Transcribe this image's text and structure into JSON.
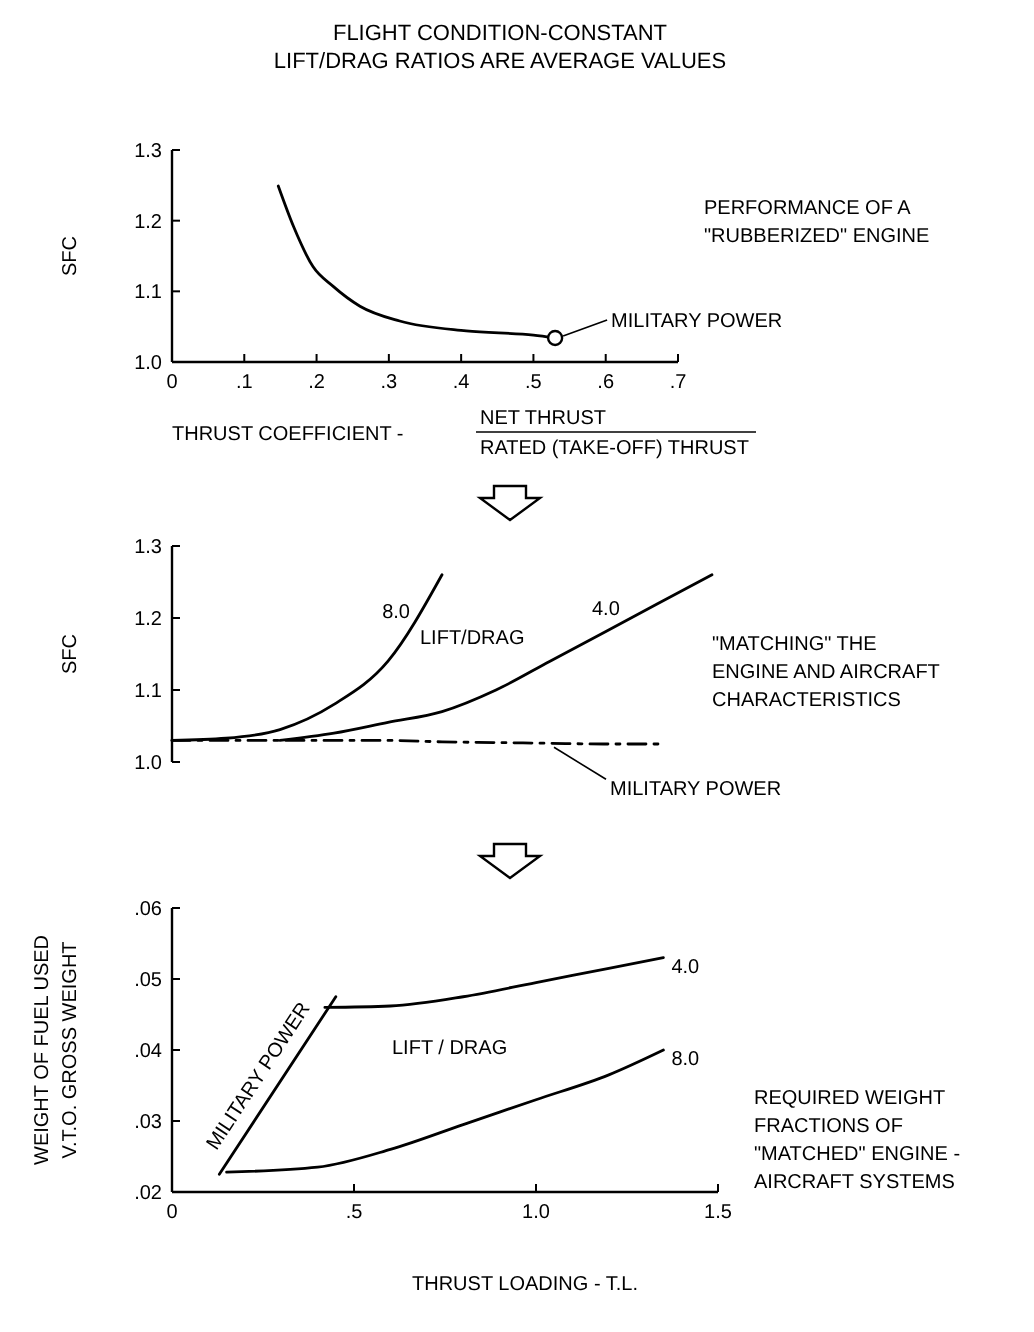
{
  "chart_data": [
    {
      "type": "line",
      "title": "FLIGHT CONDITION-CONSTANT\nLIFT/DRAG RATIOS ARE AVERAGE VALUES",
      "xlabel": "THRUST COEFFICIENT - NET THRUST\nRATED (TAKE-OFF) THRUST",
      "ylabel": "SFC",
      "xlim": [
        0,
        0.7
      ],
      "xticks": [
        {
          "value": 0,
          "label": "0"
        },
        {
          "value": 0.1,
          "label": ".1"
        },
        {
          "value": 0.2,
          "label": ".2"
        },
        {
          "value": 0.3,
          "label": ".3"
        },
        {
          "value": 0.4,
          "label": ".4"
        },
        {
          "value": 0.5,
          "label": ".5"
        },
        {
          "value": 0.6,
          "label": ".6"
        },
        {
          "value": 0.7,
          "label": ".7"
        }
      ],
      "ylim": [
        1.0,
        1.3
      ],
      "yticks": [
        {
          "value": 1,
          "label": "1.0"
        },
        1.1,
        1.2,
        1.3
      ],
      "annotations": [
        "PERFORMANCE OF A\n\"RUBBERIZED\" ENGINE",
        {
          "text": "MILITARY POWER",
          "x": 0.53,
          "y": 1.034
        }
      ],
      "series": [
        {
          "color": "#000000",
          "x": [
            0.147,
            0.168,
            0.195,
            0.223,
            0.26,
            0.315,
            0.407,
            0.5,
            0.53
          ],
          "values": [
            1.249,
            1.192,
            1.135,
            1.107,
            1.079,
            1.058,
            1.044,
            1.038,
            1.034
          ]
        },
        {
          "type": "scatter",
          "marker": "circle",
          "color": "#000000",
          "x": [
            0.53
          ],
          "values": [
            1.034
          ]
        }
      ]
    },
    {
      "type": "line",
      "ylabel": "SFC",
      "categories": [
        null,
        null,
        null,
        null,
        null,
        null,
        null,
        null,
        null,
        null,
        null
      ],
      "ylim": [
        1.0,
        1.3
      ],
      "yticks": [
        {
          "value": 1,
          "label": "1.0"
        },
        1.1,
        1.2,
        1.3
      ],
      "tick_labels": "y",
      "annotations": [
        "LIFT/DRAG",
        "\"MATCHING\" THE\nENGINE AND AIRCRAFT\nCHARACTERISTICS"
      ],
      "series": [
        {
          "name": "8.0",
          "color": "#000000",
          "values": [
            1.03,
            1.033,
            1.045,
            1.08,
            1.14,
            1.26,
            null,
            null,
            null,
            null,
            null
          ]
        },
        {
          "name": "4.0",
          "color": "#000000",
          "values": [
            null,
            null,
            1.03,
            1.04,
            1.055,
            1.07,
            1.1,
            1.14,
            1.18,
            1.22,
            1.26
          ]
        },
        {
          "name": "MILITARY POWER",
          "color": "#000000",
          "line_style": "dashed",
          "values": [
            1.03,
            1.03,
            1.03,
            1.03,
            1.03,
            1.028,
            1.027,
            1.026,
            1.025,
            1.025,
            null
          ]
        }
      ]
    },
    {
      "type": "line",
      "xlabel": "THRUST LOADING - T.L.",
      "ylabel": "WEIGHT OF FUEL USED\nV.T.O. GROSS WEIGHT",
      "xlim": [
        0,
        1.5
      ],
      "xticks": [
        0,
        {
          "value": 0.5,
          "label": ".5"
        },
        {
          "value": 1,
          "label": "1.0"
        },
        1.5
      ],
      "ylim": [
        0.02,
        0.06
      ],
      "yticks": [
        {
          "value": 0.02,
          "label": ".02"
        },
        {
          "value": 0.03,
          "label": ".03"
        },
        {
          "value": 0.04,
          "label": ".04"
        },
        {
          "value": 0.05,
          "label": ".05"
        },
        {
          "value": 0.06,
          "label": ".06"
        }
      ],
      "annotations": [
        "LIFT / DRAG",
        "REQUIRED WEIGHT\nFRACTIONS OF\n\"MATCHED\" ENGINE -\nAIRCRAFT SYSTEMS"
      ],
      "series": [
        {
          "name": "4.0",
          "color": "#000000",
          "x": [
            0.42,
            0.6,
            0.8,
            1.0,
            1.2,
            1.35
          ],
          "values": [
            0.046,
            0.0462,
            0.0475,
            0.0495,
            0.0515,
            0.053
          ]
        },
        {
          "name": "8.0",
          "color": "#000000",
          "x": [
            0.15,
            0.4,
            0.6,
            0.8,
            1.0,
            1.2,
            1.35
          ],
          "values": [
            0.0228,
            0.0235,
            0.026,
            0.0295,
            0.033,
            0.0365,
            0.04
          ]
        },
        {
          "name": "MILITARY POWER",
          "color": "#000000",
          "x": [
            0.13,
            0.45
          ],
          "values": [
            0.0225,
            0.0475
          ]
        }
      ]
    }
  ]
}
